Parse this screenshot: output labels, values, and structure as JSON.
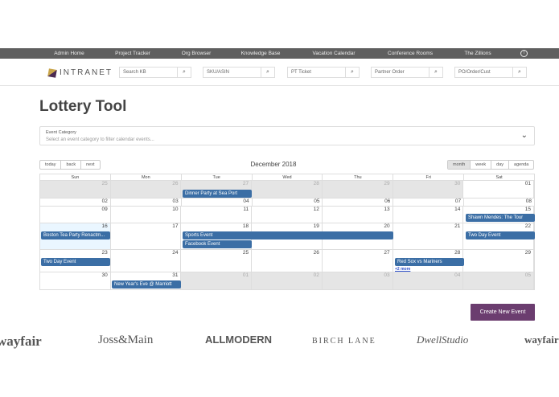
{
  "nav": {
    "items": [
      "Admin Home",
      "Project Tracker",
      "Org Browser",
      "Knowledge Base",
      "Vacation Calendar",
      "Conference Rooms",
      "The Zillions"
    ]
  },
  "logo": {
    "text": "INTRANET"
  },
  "searches": [
    "Search KB",
    "SKU/ASIN",
    "PT Ticket",
    "Partner Order",
    "PO/Order/Cust"
  ],
  "page": {
    "title": "Lottery Tool"
  },
  "category": {
    "label": "Event Category",
    "placeholder": "Select an event category to filter calendar events..."
  },
  "toolbar": {
    "nav": [
      "today",
      "back",
      "next"
    ],
    "label": "December 2018",
    "views": [
      "month",
      "week",
      "day",
      "agenda"
    ],
    "active_view": "month"
  },
  "calendar": {
    "weekdays": [
      "Sun",
      "Mon",
      "Tue",
      "Wed",
      "Thu",
      "Fri",
      "Sat"
    ],
    "weeks": [
      {
        "days": [
          "25",
          "26",
          "27",
          "28",
          "29",
          "30",
          "01"
        ],
        "off": [
          0,
          1,
          2,
          3,
          4,
          5
        ]
      },
      {
        "days": [
          "02",
          "03",
          "04",
          "05",
          "06",
          "07",
          "08"
        ],
        "off": []
      },
      {
        "days": [
          "09",
          "10",
          "11",
          "12",
          "13",
          "14",
          "15"
        ],
        "off": []
      },
      {
        "days": [
          "16",
          "17",
          "18",
          "19",
          "20",
          "21",
          "22"
        ],
        "off": [],
        "today": 0
      },
      {
        "days": [
          "23",
          "24",
          "25",
          "26",
          "27",
          "28",
          "29"
        ],
        "off": []
      },
      {
        "days": [
          "30",
          "31",
          "01",
          "02",
          "03",
          "04",
          "05"
        ],
        "off": [
          2,
          3,
          4,
          5,
          6
        ]
      }
    ],
    "events": [
      {
        "title": "Dinner Party at Sea Port",
        "start": "2018-11-27",
        "days": 1
      },
      {
        "title": "Shawn Mendes: The Tour",
        "start": "2018-12-15",
        "days": 1
      },
      {
        "title": "Boston Tea Party Renactm...",
        "start": "2018-12-16",
        "days": 1
      },
      {
        "title": "Sports Event",
        "start": "2018-12-18",
        "days": 3
      },
      {
        "title": "Two Day Event",
        "start": "2018-12-22",
        "days": 2
      },
      {
        "title": "Facebook Event",
        "start": "2018-12-18",
        "days": 1
      },
      {
        "title": "Red Sox vs Mariners",
        "start": "2018-12-28",
        "days": 1
      },
      {
        "title": "New Year's Eve @ Marriott",
        "start": "2018-12-31",
        "days": 1
      }
    ],
    "more": [
      {
        "date": "2018-12-28",
        "label": "+2 more"
      }
    ]
  },
  "create_button": "Create New Event",
  "brands": [
    "wayfair",
    "Joss&Main",
    "ALLMODERN",
    "BIRCH LANE",
    "DwellStudio",
    "wayfair"
  ],
  "colors": {
    "nav": "#5f5f5f",
    "event": "#3b6ea5",
    "create": "#6b3d6f",
    "off_day": "#e5e5e5"
  }
}
